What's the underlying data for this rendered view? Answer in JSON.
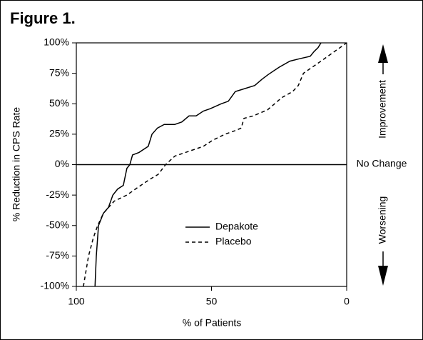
{
  "chart_data": {
    "type": "line",
    "title": "Figure 1.",
    "x_label": "% of Patients",
    "y_label": "% Reduction in CPS Rate",
    "xlim": [
      100,
      0
    ],
    "ylim": [
      -100,
      100
    ],
    "xticks": [
      100,
      50,
      0
    ],
    "yticks": [
      {
        "value": -100,
        "label": "-100%"
      },
      {
        "value": -75,
        "label": "-75%"
      },
      {
        "value": -50,
        "label": "-50%"
      },
      {
        "value": -25,
        "label": "-25%"
      },
      {
        "value": 0,
        "label": "0%"
      },
      {
        "value": 25,
        "label": "25%"
      },
      {
        "value": 50,
        "label": "50%"
      },
      {
        "value": 75,
        "label": "75%"
      },
      {
        "value": 100,
        "label": "100%"
      }
    ],
    "reference_line": 0,
    "legend": "lower center",
    "annotations": {
      "improvement": "Improvement",
      "no_change": "No Change",
      "worsening": "Worsening"
    },
    "series": [
      {
        "name": "Depakote",
        "color": "#000000",
        "style": "solid",
        "x": [
          93.1,
          92.6,
          91.8,
          90,
          88.1,
          86.5,
          84.7,
          82.6,
          81.3,
          80.2,
          79.2,
          76.8,
          73.4,
          72,
          70,
          67.5,
          63.6,
          61,
          58.3,
          55.7,
          53,
          50.4,
          46.4,
          43.8,
          41.2,
          34,
          31.4,
          29,
          25,
          21,
          17.4,
          13.5,
          12,
          10.6,
          9.5
        ],
        "values": [
          -100,
          -75,
          -50,
          -40,
          -35,
          -25,
          -20,
          -17,
          -3,
          0,
          8,
          10,
          15,
          25,
          30,
          33,
          33,
          35,
          40,
          40,
          44,
          46,
          50,
          52,
          60,
          65,
          70,
          74,
          80,
          85,
          87,
          89,
          93,
          96,
          100
        ]
      },
      {
        "name": "Placebo",
        "color": "#000000",
        "style": "dashed",
        "x": [
          97.4,
          95.5,
          93.7,
          92.1,
          90,
          86,
          81.3,
          76.8,
          72.8,
          69.7,
          67,
          63.6,
          59.6,
          53,
          49.6,
          45,
          41.2,
          39,
          38,
          34.6,
          29.3,
          24,
          20,
          17.9,
          16,
          9.5,
          0
        ],
        "values": [
          -100,
          -75,
          -60,
          -50,
          -40,
          -30,
          -25,
          -18,
          -12,
          -8,
          0,
          7,
          10,
          15,
          20,
          25,
          28,
          30,
          38,
          40,
          45,
          55,
          60,
          65,
          75,
          85,
          100
        ]
      }
    ]
  }
}
